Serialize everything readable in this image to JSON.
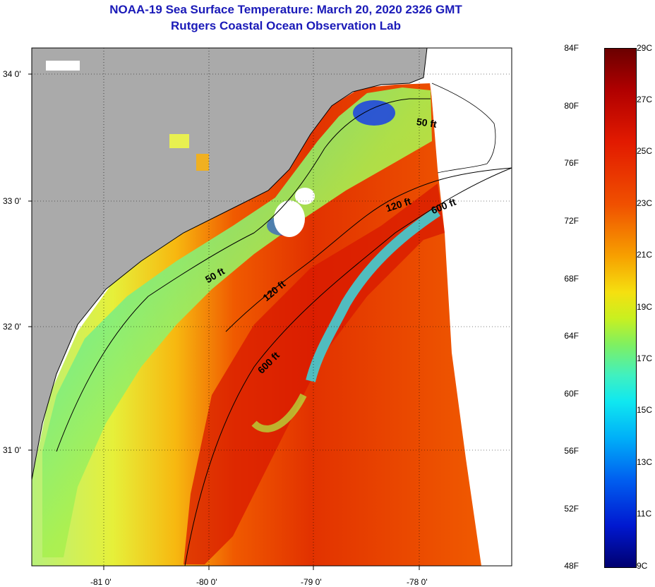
{
  "title": {
    "line1": "NOAA-19 Sea Surface Temperature:  March 20, 2020 2326 GMT",
    "line2": "Rutgers Coastal Ocean Observation Lab"
  },
  "axes": {
    "lat_labels": [
      "34 0'",
      "33 0'",
      "32 0'",
      "31 0'"
    ],
    "lon_labels": [
      "-81 0'",
      "-80 0'",
      "-79 0'",
      "-78 0'"
    ]
  },
  "contours": {
    "c50a": "50 ft",
    "c50b": "50 ft",
    "c120a": "120 ft",
    "c120b": "120 ft",
    "c600a": "600 ft",
    "c600b": "600 ft"
  },
  "colorbar": {
    "f_labels": [
      "84F",
      "80F",
      "76F",
      "72F",
      "68F",
      "64F",
      "60F",
      "56F",
      "52F",
      "48F"
    ],
    "c_labels": [
      "29C",
      "27C",
      "25C",
      "23C",
      "21C",
      "19C",
      "17C",
      "15C",
      "13C",
      "11C",
      "9C"
    ]
  },
  "colors": {
    "land": "#aaaaaa",
    "title": "#1a1ab8"
  }
}
